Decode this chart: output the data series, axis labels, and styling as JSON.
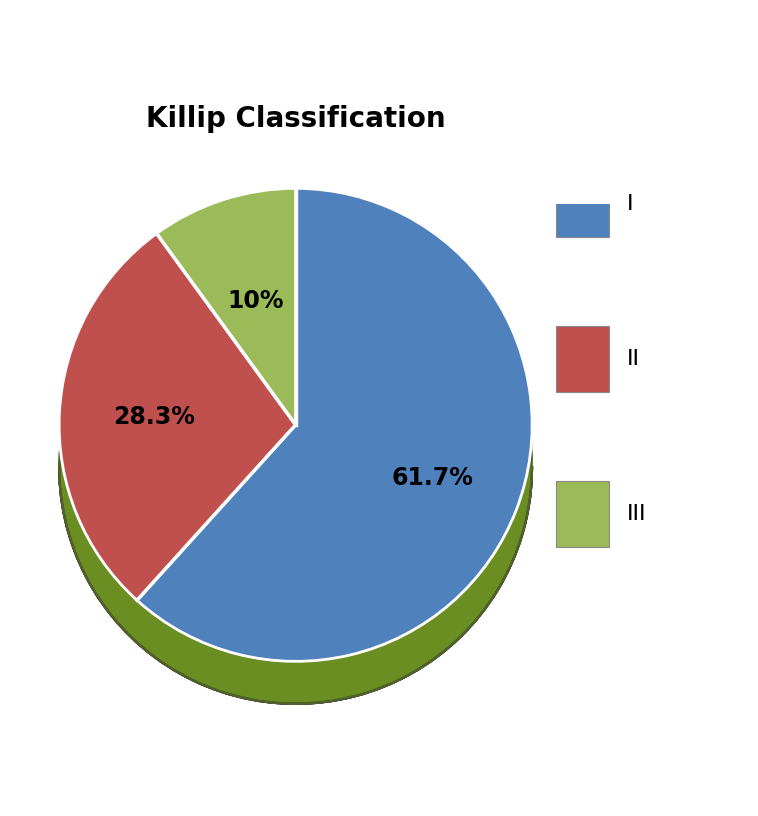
{
  "title": "Killip Classification",
  "title_fontsize": 20,
  "title_fontweight": "bold",
  "slices": [
    61.7,
    28.3,
    10.0
  ],
  "labels": [
    "I",
    "II",
    "III"
  ],
  "pct_labels": [
    "61.7%",
    "28.3%",
    "10%"
  ],
  "colors": [
    "#4F81BD",
    "#C0504D",
    "#9BBB59"
  ],
  "dark_colors": [
    "#17375E",
    "#632523",
    "#4F6228"
  ],
  "mid_colors": [
    "#2E6096",
    "#9B1C1C",
    "#6B8E23"
  ],
  "startangle": 90,
  "background_color": "#ffffff",
  "legend_labels": [
    "I",
    "II",
    "III"
  ],
  "legend_colors": [
    "#4F81BD",
    "#C0504D",
    "#9BBB59"
  ]
}
